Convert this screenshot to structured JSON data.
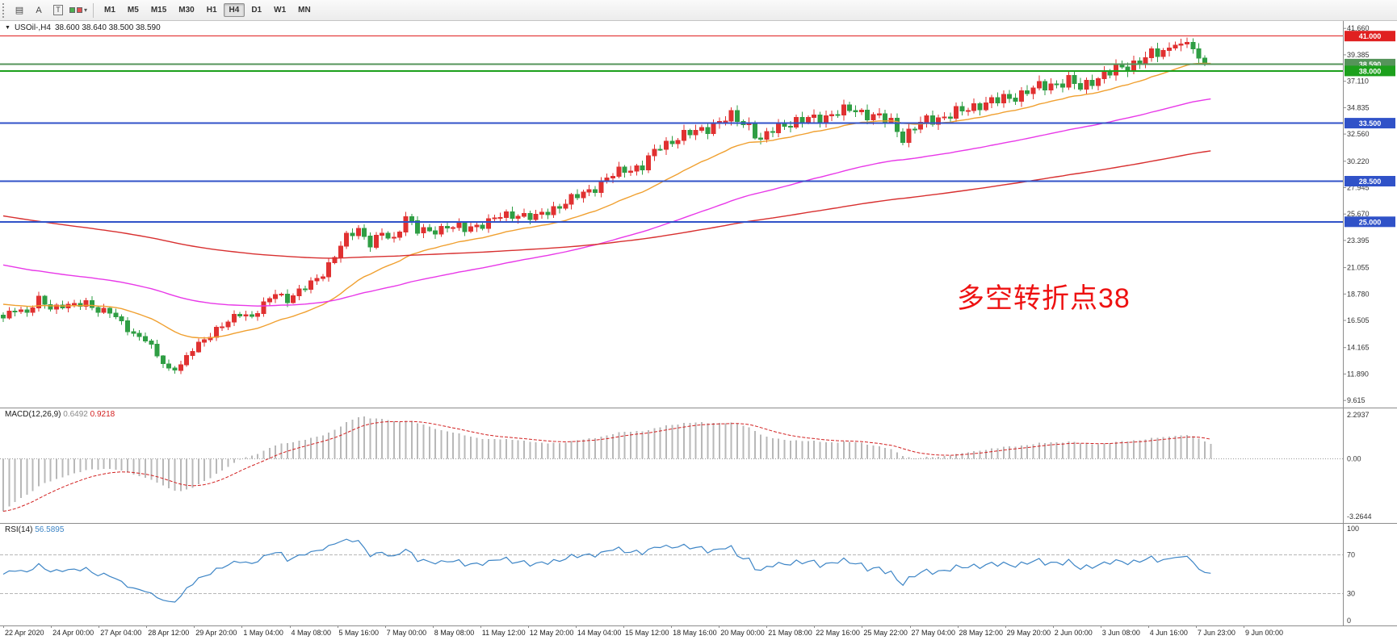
{
  "toolbar": {
    "tool_buttons": [
      "A",
      "T"
    ],
    "caret": "▾",
    "timeframes": [
      "M1",
      "M5",
      "M15",
      "M30",
      "H1",
      "H4",
      "D1",
      "W1",
      "MN"
    ],
    "active_timeframe": "H4"
  },
  "chart": {
    "title": {
      "marker": "▼",
      "symbol_tf": "USOil-,H4",
      "ohlc": "38.600 38.640 38.500 38.590"
    },
    "annotation": {
      "text": "多空转折点38",
      "color": "#ee1111"
    },
    "axis": {
      "price_top": 42.3,
      "price_bottom": 9.0,
      "labels": [
        "41.660",
        "39.385",
        "37.110",
        "34.835",
        "32.560",
        "30.220",
        "27.945",
        "25.670",
        "23.395",
        "21.055",
        "18.780",
        "16.505",
        "14.165",
        "11.890",
        "9.615"
      ]
    },
    "hlines": [
      {
        "price": 41.0,
        "label": "41.000",
        "color": "#e02020",
        "width": 1
      },
      {
        "price": 38.59,
        "label": "38.590",
        "color": "#55945a",
        "width": 2
      },
      {
        "price": 38.0,
        "label": "38.000",
        "color": "#1ca01c",
        "width": 2
      },
      {
        "price": 33.5,
        "label": "33.500",
        "color": "#3052c8",
        "width": 2
      },
      {
        "price": 28.5,
        "label": "28.500",
        "color": "#3052c8",
        "width": 2
      },
      {
        "price": 25.0,
        "label": "25.000",
        "color": "#3052c8",
        "width": 2
      }
    ],
    "candles": {
      "count": 205,
      "up_color": "#e03131",
      "down_color": "#2f9e44",
      "last": {
        "o": 38.6,
        "h": 38.64,
        "l": 38.5,
        "c": 38.59
      },
      "anchors": [
        [
          0,
          16.6
        ],
        [
          2,
          17.6
        ],
        [
          4,
          17.2
        ],
        [
          6,
          18.2
        ],
        [
          8,
          17.6
        ],
        [
          10,
          17.9
        ],
        [
          12,
          17.7
        ],
        [
          14,
          18.0
        ],
        [
          16,
          17.5
        ],
        [
          18,
          17.2
        ],
        [
          20,
          16.2
        ],
        [
          22,
          15.4
        ],
        [
          24,
          14.9
        ],
        [
          26,
          13.4
        ],
        [
          28,
          12.3
        ],
        [
          30,
          12.7
        ],
        [
          32,
          13.9
        ],
        [
          34,
          14.9
        ],
        [
          36,
          15.8
        ],
        [
          38,
          16.3
        ],
        [
          40,
          17.1
        ],
        [
          42,
          16.9
        ],
        [
          44,
          17.8
        ],
        [
          46,
          18.8
        ],
        [
          48,
          18.4
        ],
        [
          50,
          19.0
        ],
        [
          52,
          19.6
        ],
        [
          54,
          20.6
        ],
        [
          56,
          22.1
        ],
        [
          58,
          23.6
        ],
        [
          60,
          24.4
        ],
        [
          62,
          23.2
        ],
        [
          64,
          23.9
        ],
        [
          66,
          23.4
        ],
        [
          68,
          25.6
        ],
        [
          70,
          24.2
        ],
        [
          72,
          24.1
        ],
        [
          75,
          24.7
        ],
        [
          78,
          24.3
        ],
        [
          81,
          24.9
        ],
        [
          84,
          25.4
        ],
        [
          87,
          25.7
        ],
        [
          90,
          25.3
        ],
        [
          93,
          26.2
        ],
        [
          96,
          26.9
        ],
        [
          99,
          27.7
        ],
        [
          102,
          28.7
        ],
        [
          105,
          29.5
        ],
        [
          108,
          29.8
        ],
        [
          111,
          31.5
        ],
        [
          114,
          32.3
        ],
        [
          117,
          32.7
        ],
        [
          120,
          33.4
        ],
        [
          123,
          34.0
        ],
        [
          126,
          33.4
        ],
        [
          128,
          31.9
        ],
        [
          130,
          32.9
        ],
        [
          132,
          33.5
        ],
        [
          135,
          33.7
        ],
        [
          138,
          34.0
        ],
        [
          141,
          34.4
        ],
        [
          144,
          34.7
        ],
        [
          147,
          34.1
        ],
        [
          150,
          33.6
        ],
        [
          152,
          32.3
        ],
        [
          154,
          33.1
        ],
        [
          156,
          33.7
        ],
        [
          159,
          34.1
        ],
        [
          162,
          34.5
        ],
        [
          165,
          35.2
        ],
        [
          168,
          35.4
        ],
        [
          171,
          35.9
        ],
        [
          174,
          36.4
        ],
        [
          177,
          36.9
        ],
        [
          180,
          37.1
        ],
        [
          182,
          36.5
        ],
        [
          184,
          37.3
        ],
        [
          186,
          37.6
        ],
        [
          189,
          38.3
        ],
        [
          192,
          38.9
        ],
        [
          195,
          39.5
        ],
        [
          198,
          40.2
        ],
        [
          200,
          40.45
        ],
        [
          201,
          39.9
        ],
        [
          202,
          39.1
        ],
        [
          203,
          38.7
        ],
        [
          204,
          38.59
        ]
      ]
    },
    "moving_averages": [
      {
        "name": "ma-fast",
        "period": 24,
        "seed": 18.0,
        "color": "#f0a030"
      },
      {
        "name": "ma-medium",
        "period": 80,
        "seed": 21.4,
        "color": "#e838e8"
      },
      {
        "name": "ma-slow",
        "period": 200,
        "seed": 25.6,
        "color": "#d83030"
      }
    ]
  },
  "macd": {
    "label": "MACD(12,26,9)",
    "value_main": "0.6492",
    "value_signal": "0.9218",
    "axis_labels": [
      "2.2937",
      "0.00",
      "-3.2644"
    ],
    "hist_color": "#b8b8b8",
    "signal_color": "#d22020",
    "params": {
      "fast": 12,
      "slow": 26,
      "signal": 9,
      "slow_seed_offset": 2.6
    }
  },
  "rsi": {
    "label": "RSI(14)",
    "value": "56.5895",
    "period": 14,
    "axis_labels": [
      "100",
      "70",
      "30",
      "0"
    ],
    "levels": [
      70,
      30
    ],
    "line_color": "#3d85c6"
  },
  "time_axis": {
    "labels": [
      "22 Apr 2020",
      "24 Apr 00:00",
      "27 Apr 04:00",
      "28 Apr 12:00",
      "29 Apr 20:00",
      "1 May 04:00",
      "4 May 08:00",
      "5 May 16:00",
      "7 May 00:00",
      "8 May 08:00",
      "11 May 12:00",
      "12 May 20:00",
      "14 May 04:00",
      "15 May 12:00",
      "18 May 16:00",
      "20 May 00:00",
      "21 May 08:00",
      "22 May 16:00",
      "25 May 22:00",
      "27 May 04:00",
      "28 May 12:00",
      "29 May 20:00",
      "2 Jun 00:00",
      "3 Jun 08:00",
      "4 Jun 16:00",
      "7 Jun 23:00",
      "9 Jun 00:00"
    ]
  }
}
